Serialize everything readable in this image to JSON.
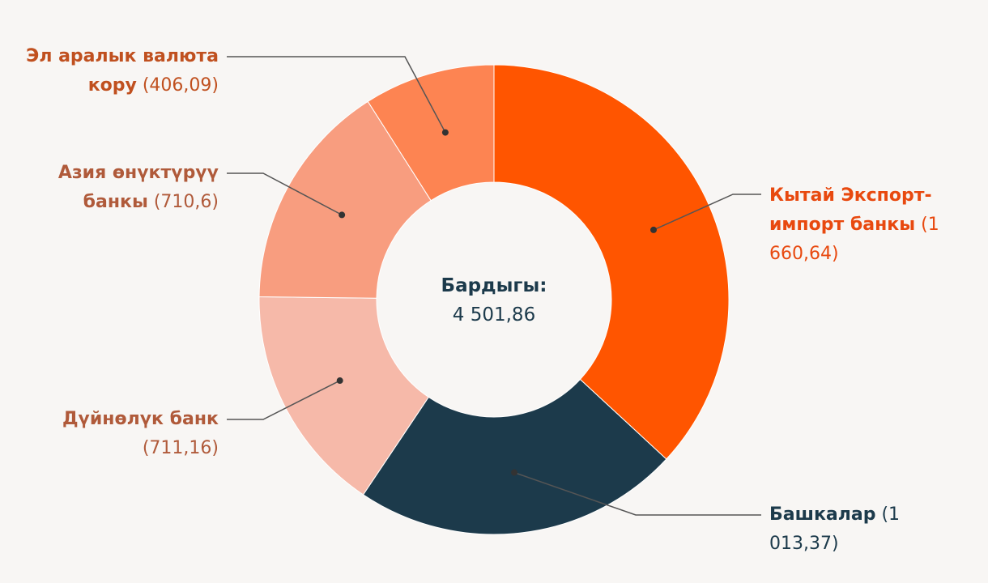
{
  "chart_data": {
    "type": "donut",
    "categories": [
      "Кытай Экспорт-импорт банкы",
      "Башкалар",
      "Дүйнөлүк банк",
      "Азия өнүктүрүү банкы",
      "Эл аралык валюта кору"
    ],
    "values": [
      1660.64,
      1013.37,
      711.16,
      710.6,
      406.09
    ],
    "value_labels": [
      "(1 660,64)",
      "(1 013,37)",
      "(711,16)",
      "(710,6)",
      "(406,09)"
    ],
    "colors": [
      "#ff5500",
      "#1c3a4b",
      "#f6b9a9",
      "#f89d7f",
      "#fd8452"
    ],
    "label_colors": [
      "#e8490f",
      "#1c3a4b",
      "#b05a3a",
      "#b05a3a",
      "#c0501f"
    ],
    "center_title": "Бардыгы:",
    "center_value": "4 501,86"
  }
}
